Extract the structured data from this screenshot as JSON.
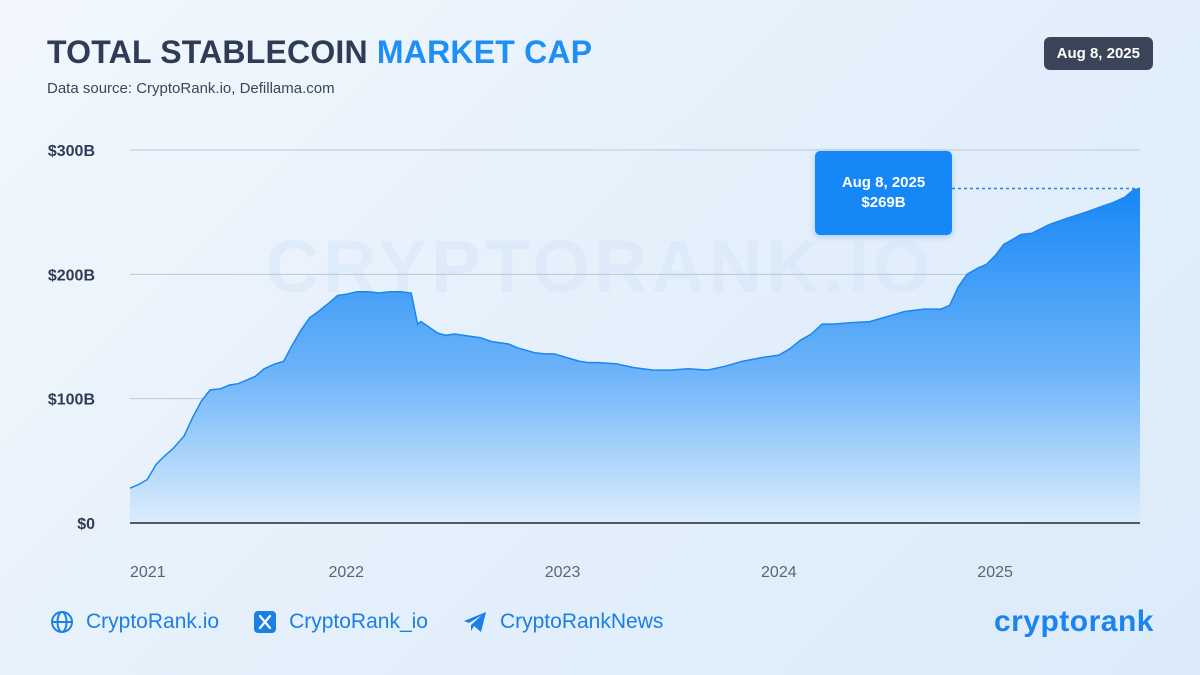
{
  "header": {
    "title_main": "TOTAL STABLECOIN",
    "title_accent": "MARKET CAP",
    "subtitle": "Data source: CryptoRank.io, Defillama.com",
    "date_badge": "Aug 8, 2025"
  },
  "watermark": "CRYPTORANK.IO",
  "callout": {
    "date": "Aug 8, 2025",
    "value": "$269B"
  },
  "footer": {
    "links": [
      {
        "label": "CryptoRank.io",
        "icon": "globe-icon"
      },
      {
        "label": "CryptoRank_io",
        "icon": "x-logo-icon"
      },
      {
        "label": "CryptoRankNews",
        "icon": "telegram-icon"
      }
    ],
    "logo": "cryptorank"
  },
  "colors": {
    "accent": "#1e8ff5",
    "area_top": "#1787f6",
    "area_bottom": "#dcedfc",
    "badge_bg": "#3b4559",
    "text_dark": "#2e3c55"
  },
  "chart_data": {
    "type": "area",
    "title": "TOTAL STABLECOIN MARKET CAP",
    "ylabel": "",
    "xlabel": "",
    "ylim": [
      0,
      300
    ],
    "y_ticks": [
      0,
      100,
      200,
      300
    ],
    "y_tick_labels": [
      "$0",
      "$100B",
      "$200B",
      "$300B"
    ],
    "x_ticks": [
      2021,
      2022,
      2023,
      2024,
      2025
    ],
    "x_tick_labels": [
      "2021",
      "2022",
      "2023",
      "2024",
      "2025"
    ],
    "xlim": [
      2021.0,
      2025.67
    ],
    "grid": true,
    "series": [
      {
        "x": [
          2021.0,
          2021.04,
          2021.08,
          2021.12,
          2021.16,
          2021.2,
          2021.25,
          2021.29,
          2021.33,
          2021.37,
          2021.42,
          2021.46,
          2021.5,
          2021.58,
          2021.62,
          2021.67,
          2021.71,
          2021.75,
          2021.79,
          2021.83,
          2021.87,
          2021.92,
          2021.96,
          2022.0,
          2022.05,
          2022.1,
          2022.15,
          2022.2,
          2022.25,
          2022.3,
          2022.33,
          2022.345,
          2022.37,
          2022.42,
          2022.46,
          2022.5,
          2022.58,
          2022.62,
          2022.67,
          2022.75,
          2022.79,
          2022.83,
          2022.87,
          2022.92,
          2022.96,
          2023.0,
          2023.08,
          2023.12,
          2023.17,
          2023.25,
          2023.33,
          2023.42,
          2023.5,
          2023.58,
          2023.67,
          2023.75,
          2023.83,
          2023.92,
          2024.0,
          2024.05,
          2024.1,
          2024.15,
          2024.2,
          2024.25,
          2024.33,
          2024.42,
          2024.5,
          2024.58,
          2024.67,
          2024.75,
          2024.79,
          2024.83,
          2024.87,
          2024.92,
          2024.96,
          2025.0,
          2025.04,
          2025.08,
          2025.12,
          2025.17,
          2025.25,
          2025.33,
          2025.42,
          2025.5,
          2025.55,
          2025.6,
          2025.64,
          2025.67
        ],
        "values": [
          28,
          31,
          35,
          47,
          54,
          60,
          70,
          85,
          98,
          107,
          108,
          111,
          112,
          118,
          124,
          128,
          130,
          143,
          155,
          165,
          170,
          177,
          183,
          184,
          186,
          186,
          185,
          186,
          186,
          185,
          160,
          162,
          159,
          153,
          151,
          152,
          150,
          149,
          146,
          144,
          141,
          139,
          137,
          136,
          136,
          134,
          130,
          129,
          129,
          128,
          125,
          123,
          123,
          124,
          123,
          126,
          130,
          133,
          135,
          140,
          147,
          152,
          160,
          160,
          161,
          162,
          166,
          170,
          172,
          172,
          175,
          190,
          200,
          205,
          208,
          215,
          224,
          228,
          232,
          233,
          240,
          245,
          250,
          255,
          258,
          262,
          268,
          269
        ]
      }
    ],
    "annotation": {
      "x": 2025.67,
      "y": 269,
      "date": "Aug 8, 2025",
      "label": "$269B"
    }
  }
}
